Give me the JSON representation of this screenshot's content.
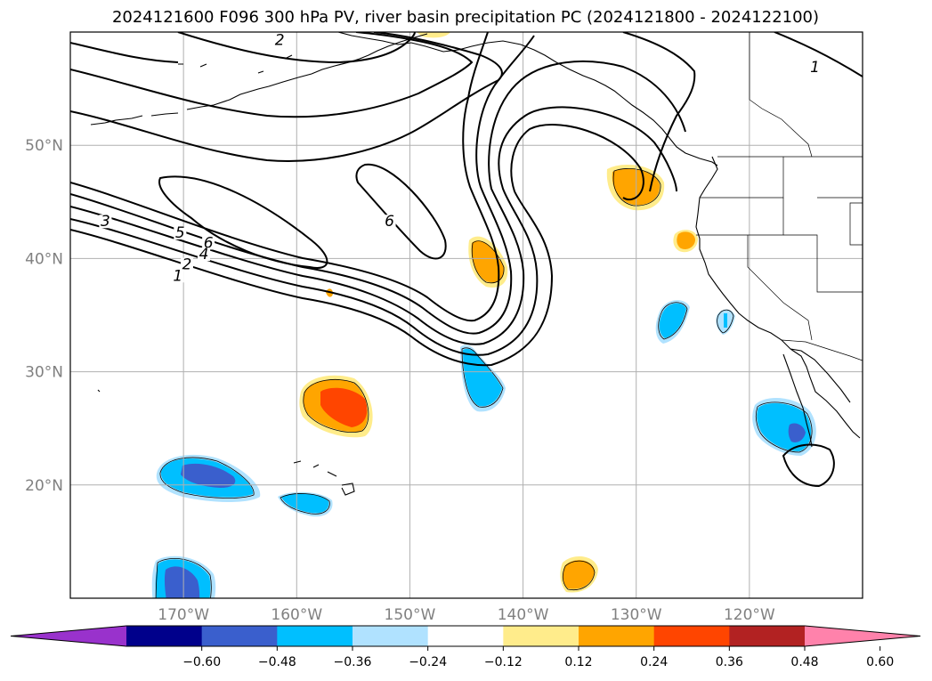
{
  "title": "2024121600 F096 300 hPa PV, river basin precipitation PC (2024121800 - 2024122100)",
  "map": {
    "lon_range": [
      -180,
      -110
    ],
    "lat_range": [
      10,
      60
    ],
    "lon_ticks": [
      {
        "value": -170,
        "label": "170°W"
      },
      {
        "value": -160,
        "label": "160°W"
      },
      {
        "value": -150,
        "label": "150°W"
      },
      {
        "value": -140,
        "label": "140°W"
      },
      {
        "value": -130,
        "label": "130°W"
      },
      {
        "value": -120,
        "label": "120°W"
      }
    ],
    "lat_ticks": [
      {
        "value": 20,
        "label": "20°N"
      },
      {
        "value": 30,
        "label": "30°N"
      },
      {
        "value": 40,
        "label": "40°N"
      },
      {
        "value": 50,
        "label": "50°N"
      }
    ],
    "gridlines": true,
    "contour_labels": [
      {
        "text": "3",
        "lon": -176.9,
        "lat": 43.0
      },
      {
        "text": "5",
        "lon": -170.3,
        "lat": 42.0
      },
      {
        "text": "6",
        "lon": -167.8,
        "lat": 41.1
      },
      {
        "text": "4",
        "lon": -168.2,
        "lat": 40.1
      },
      {
        "text": "2",
        "lon": -169.7,
        "lat": 39.2
      },
      {
        "text": "1",
        "lon": -170.5,
        "lat": 38.2
      },
      {
        "text": "6",
        "lon": -151.8,
        "lat": 43.0
      },
      {
        "text": "2",
        "lon": -161.5,
        "lat": 59.0
      },
      {
        "text": "1",
        "lon": -114.2,
        "lat": 56.6
      }
    ]
  },
  "colorbar": {
    "colors": [
      "#9932cc",
      "#00008b",
      "#3a5fcd",
      "#00bfff",
      "#b0e2ff",
      "#ffffff",
      "#ffec8b",
      "#ffa500",
      "#ff4500",
      "#b22222",
      "#ff82ab"
    ],
    "tick_labels": [
      "−0.60",
      "−0.48",
      "−0.36",
      "−0.24",
      "−0.12",
      "0.12",
      "0.24",
      "0.36",
      "0.48",
      "0.60"
    ]
  }
}
